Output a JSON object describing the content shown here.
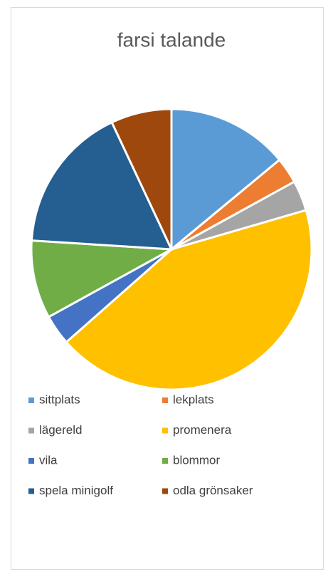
{
  "chart_data": {
    "type": "pie",
    "title": "farsi talande",
    "categories": [
      "sittplats",
      "lekplats",
      "lägereld",
      "promenera",
      "vila",
      "blommor",
      "spela minigolf",
      "odla grönsaker"
    ],
    "values": [
      14,
      3,
      3.5,
      43,
      3.5,
      9,
      17,
      7
    ],
    "colors": [
      "#5b9bd5",
      "#ed7d31",
      "#a5a5a5",
      "#ffc000",
      "#4472c4",
      "#70ad47",
      "#255e91",
      "#9e480e"
    ],
    "legend": "bottom"
  }
}
